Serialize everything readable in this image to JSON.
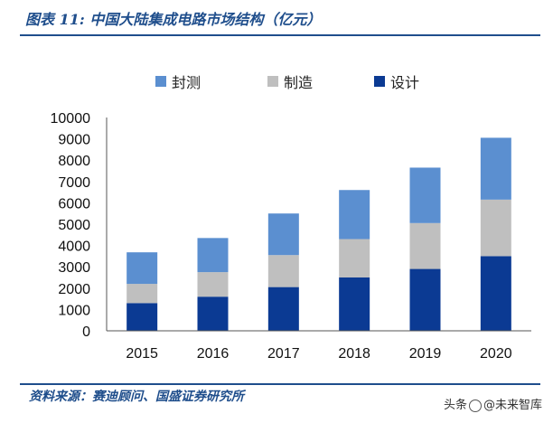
{
  "header": {
    "title": "图表 11: 中国大陆集成电路市场结构（亿元）"
  },
  "footer": {
    "source": "资料来源：赛迪顾问、国盛证券研究所"
  },
  "watermark": {
    "prefix": "头条",
    "handle": "@未来智库"
  },
  "colors": {
    "design": "#0b3a93",
    "manufacturing": "#bfbfbf",
    "packaging": "#5b8fd0",
    "accent": "#1f4e8c"
  },
  "chart_data": {
    "type": "bar",
    "stacked": true,
    "title": "中国大陆集成电路市场结构（亿元）",
    "xlabel": "",
    "ylabel": "",
    "categories": [
      "2015",
      "2016",
      "2017",
      "2018",
      "2019",
      "2020"
    ],
    "series": [
      {
        "name": "设计",
        "color": "#0b3a93",
        "values": [
          1300,
          1600,
          2050,
          2500,
          2900,
          3500
        ]
      },
      {
        "name": "制造",
        "color": "#bfbfbf",
        "values": [
          900,
          1150,
          1500,
          1800,
          2150,
          2650
        ]
      },
      {
        "name": "封测",
        "color": "#5b8fd0",
        "values": [
          1480,
          1600,
          1950,
          2300,
          2600,
          2900
        ]
      }
    ],
    "legend_order": [
      "封测",
      "制造",
      "设计"
    ],
    "legend_position": "top",
    "ylim": [
      0,
      10000
    ],
    "yticks": [
      "0",
      "1000",
      "2000",
      "3000",
      "4000",
      "5000",
      "6000",
      "7000",
      "8000",
      "9000",
      "10000"
    ],
    "grid": false
  }
}
